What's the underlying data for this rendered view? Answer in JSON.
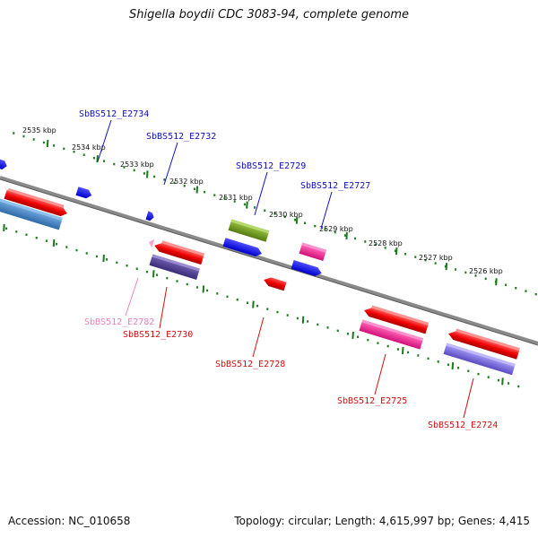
{
  "title": "Shigella boydii CDC 3083-94, complete genome",
  "footer": {
    "accession": "Accession: NC_010658",
    "summary": "Topology: circular; Length: 4,615,997 bp; Genes: 4,415"
  },
  "colors": {
    "backbone": "#808080",
    "tick": "#1a7a1a",
    "label_top": "#1010c0",
    "label_bottom": "#d01010",
    "label_pseudo": "#f080c0"
  },
  "scale_labels": [
    "2535 kbp",
    "2534 kbp",
    "2533 kbp",
    "2532 kbp",
    "2531 kbp",
    "2530 kbp",
    "2529 kbp",
    "2528 kbp",
    "2527 kbp",
    "2526 kbp"
  ],
  "gene_labels_top": [
    "SbBS512_E2734",
    "SbBS512_E2732",
    "SbBS512_E2729",
    "SbBS512_E2727"
  ],
  "gene_labels_bottom": [
    "SbBS512_E2782",
    "SbBS512_E2730",
    "SbBS512_E2728",
    "SbBS512_E2725",
    "SbBS512_E2724"
  ]
}
